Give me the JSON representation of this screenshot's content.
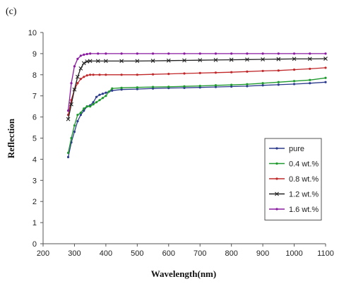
{
  "chart_data": {
    "type": "line",
    "panel_label": "(c)",
    "xlabel": "Wavelength(nm)",
    "ylabel": "Reflection",
    "xlim": [
      200,
      1100
    ],
    "ylim": [
      0,
      10
    ],
    "xticks": [
      200,
      300,
      400,
      500,
      600,
      700,
      800,
      900,
      1000,
      1100
    ],
    "yticks": [
      0,
      1,
      2,
      3,
      4,
      5,
      6,
      7,
      8,
      9,
      10
    ],
    "grid": false,
    "legend_position": "right",
    "series": [
      {
        "name": "pure",
        "color": "#2b3a8c",
        "marker": "dot",
        "x": [
          280,
          290,
          300,
          310,
          320,
          330,
          340,
          350,
          360,
          370,
          380,
          390,
          400,
          420,
          450,
          500,
          550,
          600,
          650,
          700,
          750,
          800,
          850,
          900,
          950,
          1000,
          1050,
          1100
        ],
        "y": [
          4.1,
          4.8,
          5.3,
          5.8,
          6.1,
          6.3,
          6.5,
          6.55,
          6.7,
          6.95,
          7.05,
          7.1,
          7.15,
          7.25,
          7.3,
          7.32,
          7.35,
          7.37,
          7.38,
          7.4,
          7.42,
          7.44,
          7.46,
          7.5,
          7.53,
          7.56,
          7.6,
          7.65
        ]
      },
      {
        "name": "0.4 wt.%",
        "color": "#1f9a2e",
        "marker": "dot",
        "x": [
          280,
          290,
          300,
          310,
          320,
          330,
          340,
          350,
          360,
          370,
          380,
          390,
          400,
          410,
          420,
          450,
          500,
          550,
          600,
          650,
          700,
          750,
          800,
          850,
          900,
          950,
          1000,
          1050,
          1100
        ],
        "y": [
          4.3,
          5.0,
          5.6,
          6.1,
          6.2,
          6.4,
          6.5,
          6.5,
          6.6,
          6.7,
          6.8,
          6.9,
          7.0,
          7.2,
          7.35,
          7.38,
          7.4,
          7.42,
          7.43,
          7.45,
          7.47,
          7.5,
          7.52,
          7.55,
          7.6,
          7.65,
          7.7,
          7.75,
          7.85
        ]
      },
      {
        "name": "0.8 wt.%",
        "color": "#c0282a",
        "marker": "dot",
        "x": [
          280,
          290,
          300,
          310,
          320,
          330,
          340,
          350,
          360,
          380,
          400,
          450,
          500,
          550,
          600,
          650,
          700,
          750,
          800,
          850,
          900,
          950,
          1000,
          1050,
          1100
        ],
        "y": [
          6.1,
          6.8,
          7.3,
          7.6,
          7.8,
          7.9,
          7.97,
          8.0,
          8.0,
          8.0,
          8.0,
          8.0,
          8.0,
          8.02,
          8.04,
          8.06,
          8.08,
          8.1,
          8.12,
          8.15,
          8.18,
          8.2,
          8.24,
          8.28,
          8.33
        ]
      },
      {
        "name": "1.2 wt.%",
        "color": "#222222",
        "marker": "x",
        "x": [
          280,
          290,
          300,
          310,
          320,
          330,
          340,
          350,
          375,
          400,
          450,
          500,
          550,
          600,
          650,
          700,
          750,
          800,
          850,
          900,
          950,
          1000,
          1050,
          1100
        ],
        "y": [
          5.9,
          6.6,
          7.3,
          7.9,
          8.3,
          8.55,
          8.63,
          8.65,
          8.65,
          8.65,
          8.65,
          8.65,
          8.66,
          8.67,
          8.68,
          8.69,
          8.7,
          8.71,
          8.72,
          8.73,
          8.74,
          8.75,
          8.75,
          8.76
        ]
      },
      {
        "name": "1.6 wt.%",
        "color": "#8a1aa0",
        "marker": "dot",
        "x": [
          280,
          290,
          300,
          310,
          320,
          330,
          340,
          350,
          375,
          400,
          450,
          500,
          550,
          600,
          650,
          700,
          750,
          800,
          850,
          900,
          950,
          1000,
          1050,
          1100
        ],
        "y": [
          6.3,
          7.6,
          8.4,
          8.75,
          8.9,
          8.95,
          8.98,
          9.0,
          9.0,
          9.0,
          9.0,
          9.0,
          9.0,
          9.0,
          9.0,
          9.0,
          9.0,
          9.0,
          9.0,
          9.0,
          9.0,
          9.0,
          9.0,
          9.0
        ]
      }
    ]
  }
}
